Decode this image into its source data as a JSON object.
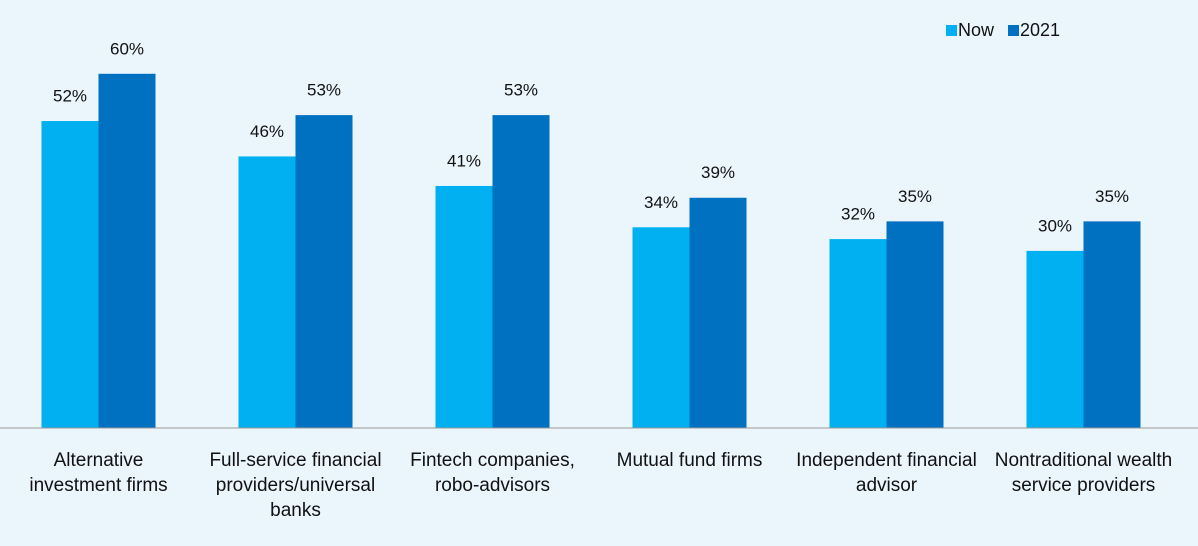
{
  "chart_data": {
    "type": "bar",
    "categories": [
      "Alternative investment firms",
      "Full-service financial providers/universal banks",
      "Fintech companies, robo-advisors",
      "Mutual fund firms",
      "Independent financial advisor",
      "Nontraditional wealth service providers"
    ],
    "series": [
      {
        "name": "Now",
        "color": "#00b0f0",
        "values": [
          52,
          46,
          41,
          34,
          32,
          30
        ],
        "value_labels": [
          "52%",
          "46%",
          "41%",
          "34%",
          "32%",
          "30%"
        ]
      },
      {
        "name": "2021",
        "color": "#0070c0",
        "values": [
          60,
          53,
          53,
          39,
          35,
          35
        ],
        "value_labels": [
          "60%",
          "53%",
          "53%",
          "39%",
          "35%",
          "35%"
        ]
      }
    ],
    "ylim": [
      0,
      72.5
    ],
    "legend": "top-right"
  }
}
